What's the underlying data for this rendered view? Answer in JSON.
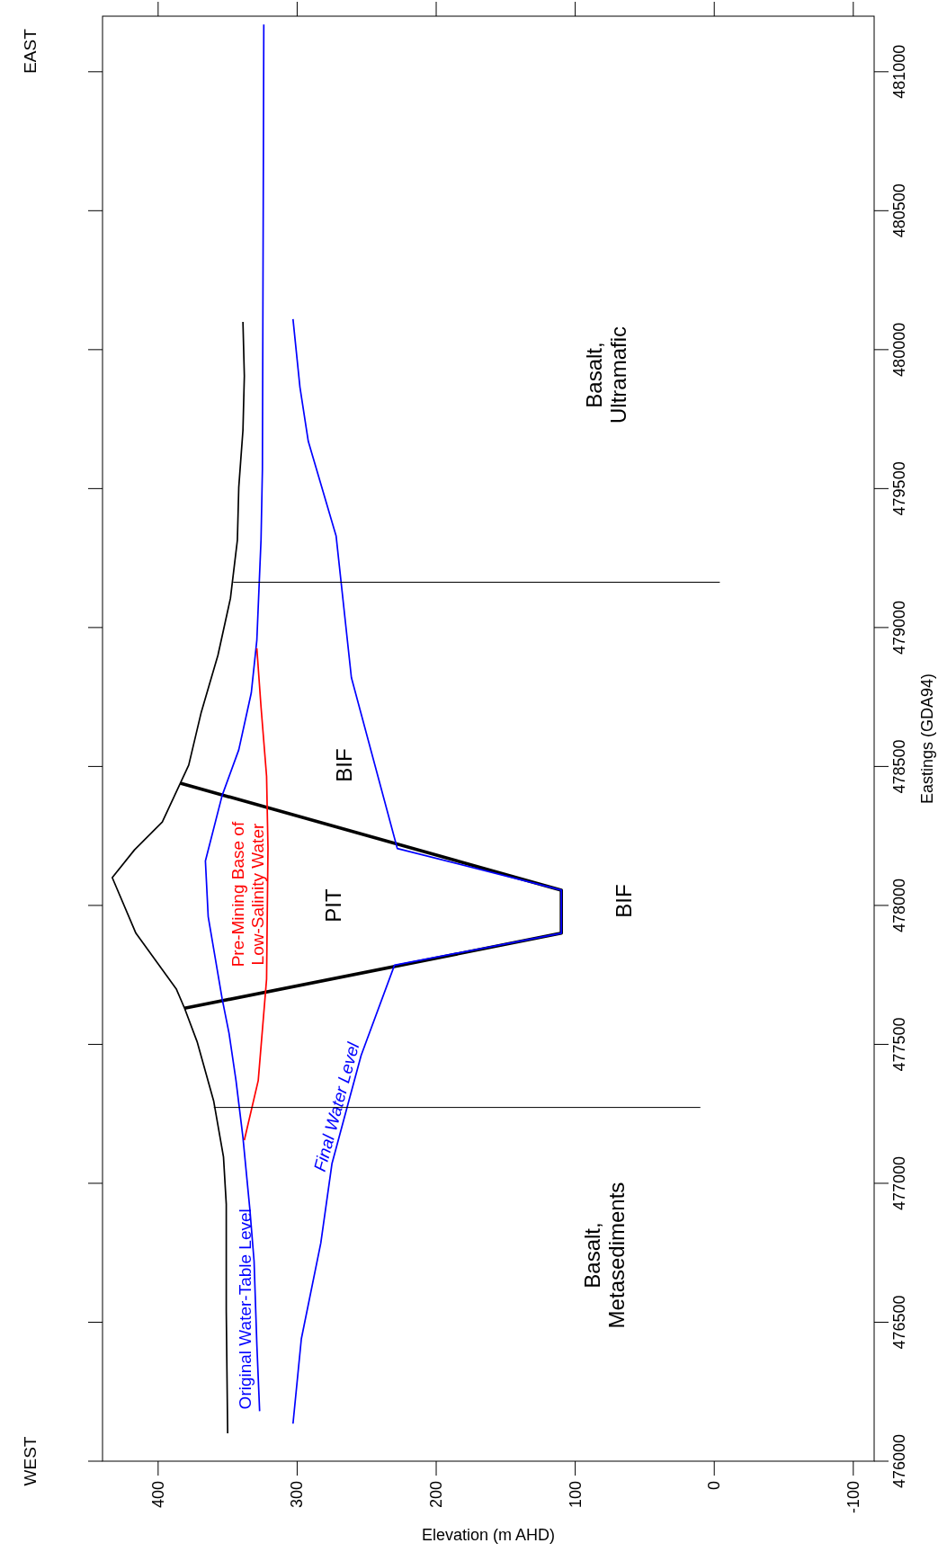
{
  "chart_data": {
    "type": "line",
    "xlabel": "Elevation (m AHD)",
    "ylabel": "Eastings (GDA94)",
    "ylim": [
      476000,
      481200
    ],
    "yticks": [
      476000,
      476500,
      477000,
      477500,
      478000,
      478500,
      479000,
      479500,
      480000,
      480500,
      481000
    ],
    "xlim": [
      440,
      -115
    ],
    "xticks": [
      400,
      300,
      200,
      100,
      0,
      -100
    ],
    "grid": false,
    "marker": "none",
    "line_style": "solid",
    "series": [
      {
        "color": "#000000",
        "values": [
          476100,
          476540,
          476925,
          477095,
          477295,
          477510,
          477630,
          477700,
          477900,
          478100,
          478200,
          478300,
          478440,
          478505,
          478695,
          478900,
          479105,
          479315,
          479505,
          479710,
          479905,
          480100
        ],
        "x": [
          350,
          351,
          351,
          353,
          360,
          372,
          381,
          387,
          416,
          433,
          417,
          397,
          384,
          378,
          369,
          357,
          348,
          343,
          342,
          339,
          338,
          339
        ]
      },
      {
        "color": "#000000",
        "values": [
          477630,
          477900,
          478055,
          478440
        ],
        "x": [
          381,
          110,
          110,
          384
        ]
      },
      {
        "name": "Original Water-Table Level",
        "color": "#0000ff",
        "values": [
          476180,
          476420,
          476720,
          476905,
          477165,
          477370,
          477540,
          477665,
          477960,
          478160,
          478395,
          478560,
          478765,
          478955,
          479315,
          479570,
          481170
        ],
        "x": [
          327,
          329,
          331,
          334,
          339,
          344,
          349,
          354,
          364,
          366,
          354,
          342,
          333,
          329,
          326,
          325,
          324
        ]
      },
      {
        "name": "Final Water Level",
        "color": "#0000ff",
        "values": [
          476135,
          476440,
          476785,
          477070,
          477275,
          477460,
          477785,
          477900,
          478055,
          478205,
          478820,
          479330,
          479670,
          479865,
          480110
        ],
        "x": [
          303,
          297,
          283,
          275,
          264,
          254,
          230,
          110,
          110,
          228,
          261,
          272,
          292,
          298,
          303
        ]
      },
      {
        "name": "Pre-Mining Base of Low-Salinity Water",
        "color": "#ff0000",
        "values": [
          477155,
          477370,
          477735,
          478205,
          478465,
          478715,
          478925
        ],
        "x": [
          338,
          328,
          322,
          321,
          322,
          326,
          329
        ]
      },
      {
        "color": "#000000",
        "values": [
          479163,
          479163
        ],
        "x": [
          346,
          -4
        ]
      },
      {
        "color": "#000000",
        "values": [
          477273,
          477273
        ],
        "x": [
          360,
          10
        ]
      }
    ],
    "annotations": [
      "WEST",
      "EAST",
      "Basalt, Ultramafic",
      "BIF",
      "PIT",
      "BIF",
      "Basalt, Metasediments"
    ]
  }
}
